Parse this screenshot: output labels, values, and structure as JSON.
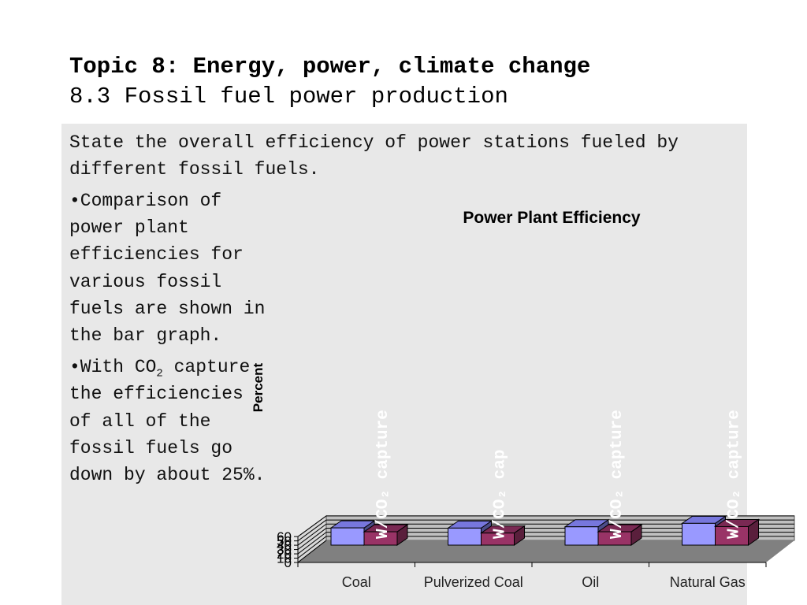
{
  "header": {
    "title": "Topic 8: Energy, power, climate change",
    "subtitle": "8.3 Fossil fuel power production"
  },
  "objective": "State the overall efficiency of power stations fueled by different fossil fuels.",
  "bullets": {
    "b1": "•Comparison of power plant efficiencies for various fossil fuels are shown in the bar graph.",
    "b2_pre": "•With CO",
    "b2_sub": "2",
    "b2_post": " capture the efficiencies of all of the fossil fuels go down by about 25%."
  },
  "colors": {
    "panel": "#e8e8e8",
    "bar_without_capture": "#9999ff",
    "bar_with_capture": "#993366",
    "plot_wall": "#c0c0c0",
    "plot_floor": "#808080"
  },
  "chart_data": {
    "type": "bar",
    "title": "Power Plant Efficiency",
    "xlabel": "",
    "ylabel": "Percent",
    "ylim": [
      0,
      60
    ],
    "yticks": [
      0,
      10,
      20,
      30,
      40,
      50,
      60
    ],
    "categories": [
      "Coal",
      "Pulverized Coal",
      "Oil",
      "Natural Gas"
    ],
    "grid": true,
    "legend": "none",
    "series": [
      {
        "values": [
          40,
          39.5,
          42.5,
          50.5
        ],
        "labels": [
          "",
          "",
          "",
          ""
        ]
      },
      {
        "values": [
          31,
          28,
          31,
          43
        ],
        "labels": [
          "W/CO₂ capture",
          "W/CO₂ cap",
          "W/CO₂ capture",
          "W/CO₂ capture"
        ]
      }
    ]
  }
}
